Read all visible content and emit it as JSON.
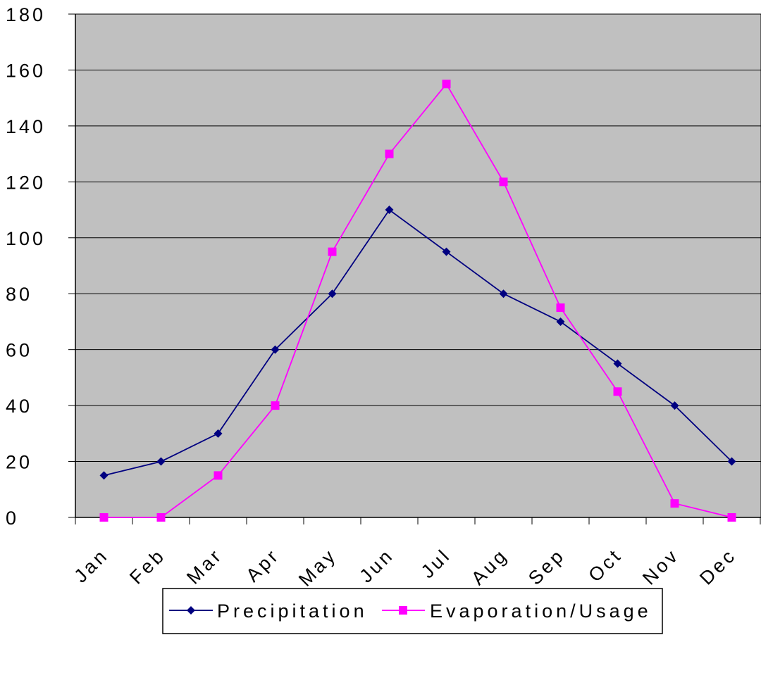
{
  "chart_data": {
    "type": "line",
    "categories": [
      "Jan",
      "Feb",
      "Mar",
      "Apr",
      "May",
      "Jun",
      "Jul",
      "Aug",
      "Sep",
      "Oct",
      "Nov",
      "Dec"
    ],
    "series": [
      {
        "name": "Precipitation",
        "values": [
          15,
          20,
          30,
          60,
          80,
          110,
          95,
          80,
          70,
          55,
          40,
          20
        ],
        "color": "#000080",
        "marker": "diamond"
      },
      {
        "name": "Evaporation/Usage",
        "values": [
          0,
          0,
          15,
          40,
          95,
          130,
          155,
          120,
          75,
          45,
          5,
          0
        ],
        "color": "#ff00ff",
        "marker": "square"
      }
    ],
    "yticks": [
      0,
      20,
      40,
      60,
      80,
      100,
      120,
      140,
      160,
      180
    ],
    "ylim": [
      0,
      180
    ],
    "grid": true,
    "legend_position": "bottom",
    "plot_background": "#c0c0c0"
  }
}
